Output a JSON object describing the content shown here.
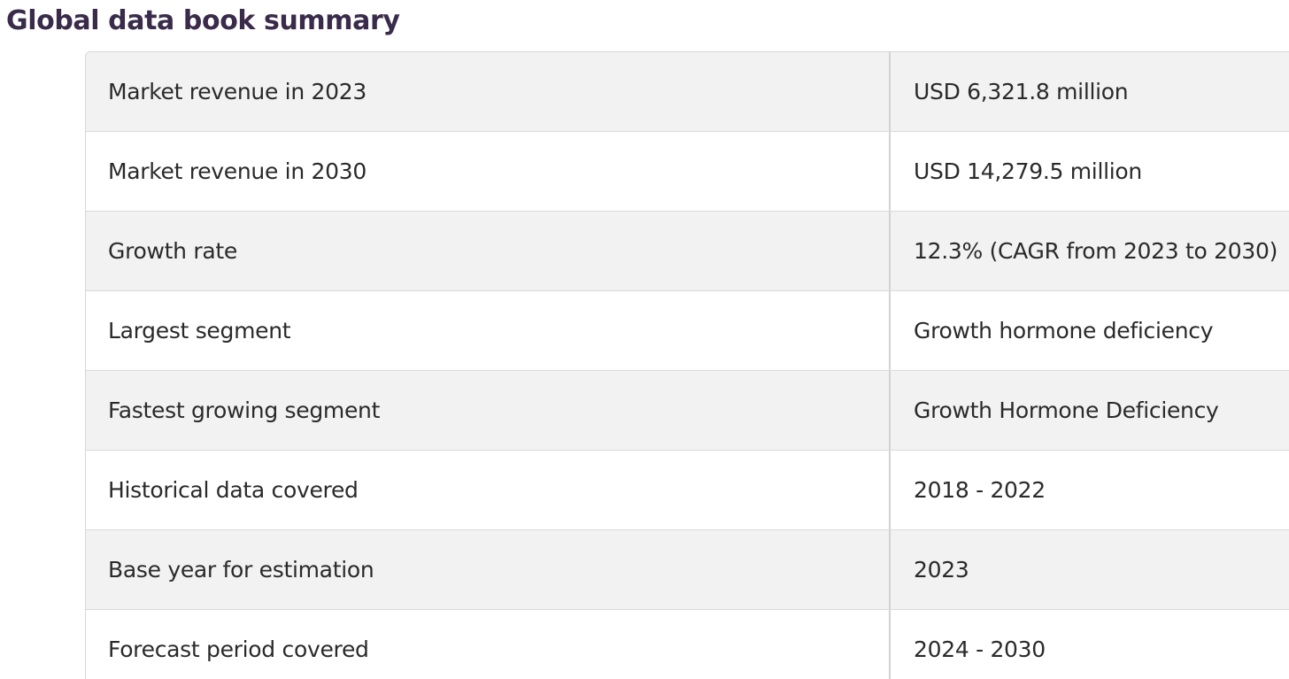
{
  "heading": "Global data book summary",
  "rows": [
    {
      "label": "Market revenue in 2023",
      "value": "USD 6,321.8 million"
    },
    {
      "label": "Market revenue in 2030",
      "value": "USD 14,279.5 million"
    },
    {
      "label": "Growth rate",
      "value": "12.3% (CAGR from 2023 to 2030)"
    },
    {
      "label": "Largest segment",
      "value": "Growth hormone deficiency"
    },
    {
      "label": "Fastest growing segment",
      "value": "Growth Hormone Deficiency"
    },
    {
      "label": "Historical data covered",
      "value": "2018 - 2022"
    },
    {
      "label": "Base year for estimation",
      "value": "2023"
    },
    {
      "label": "Forecast period covered",
      "value": "2024 - 2030"
    }
  ]
}
